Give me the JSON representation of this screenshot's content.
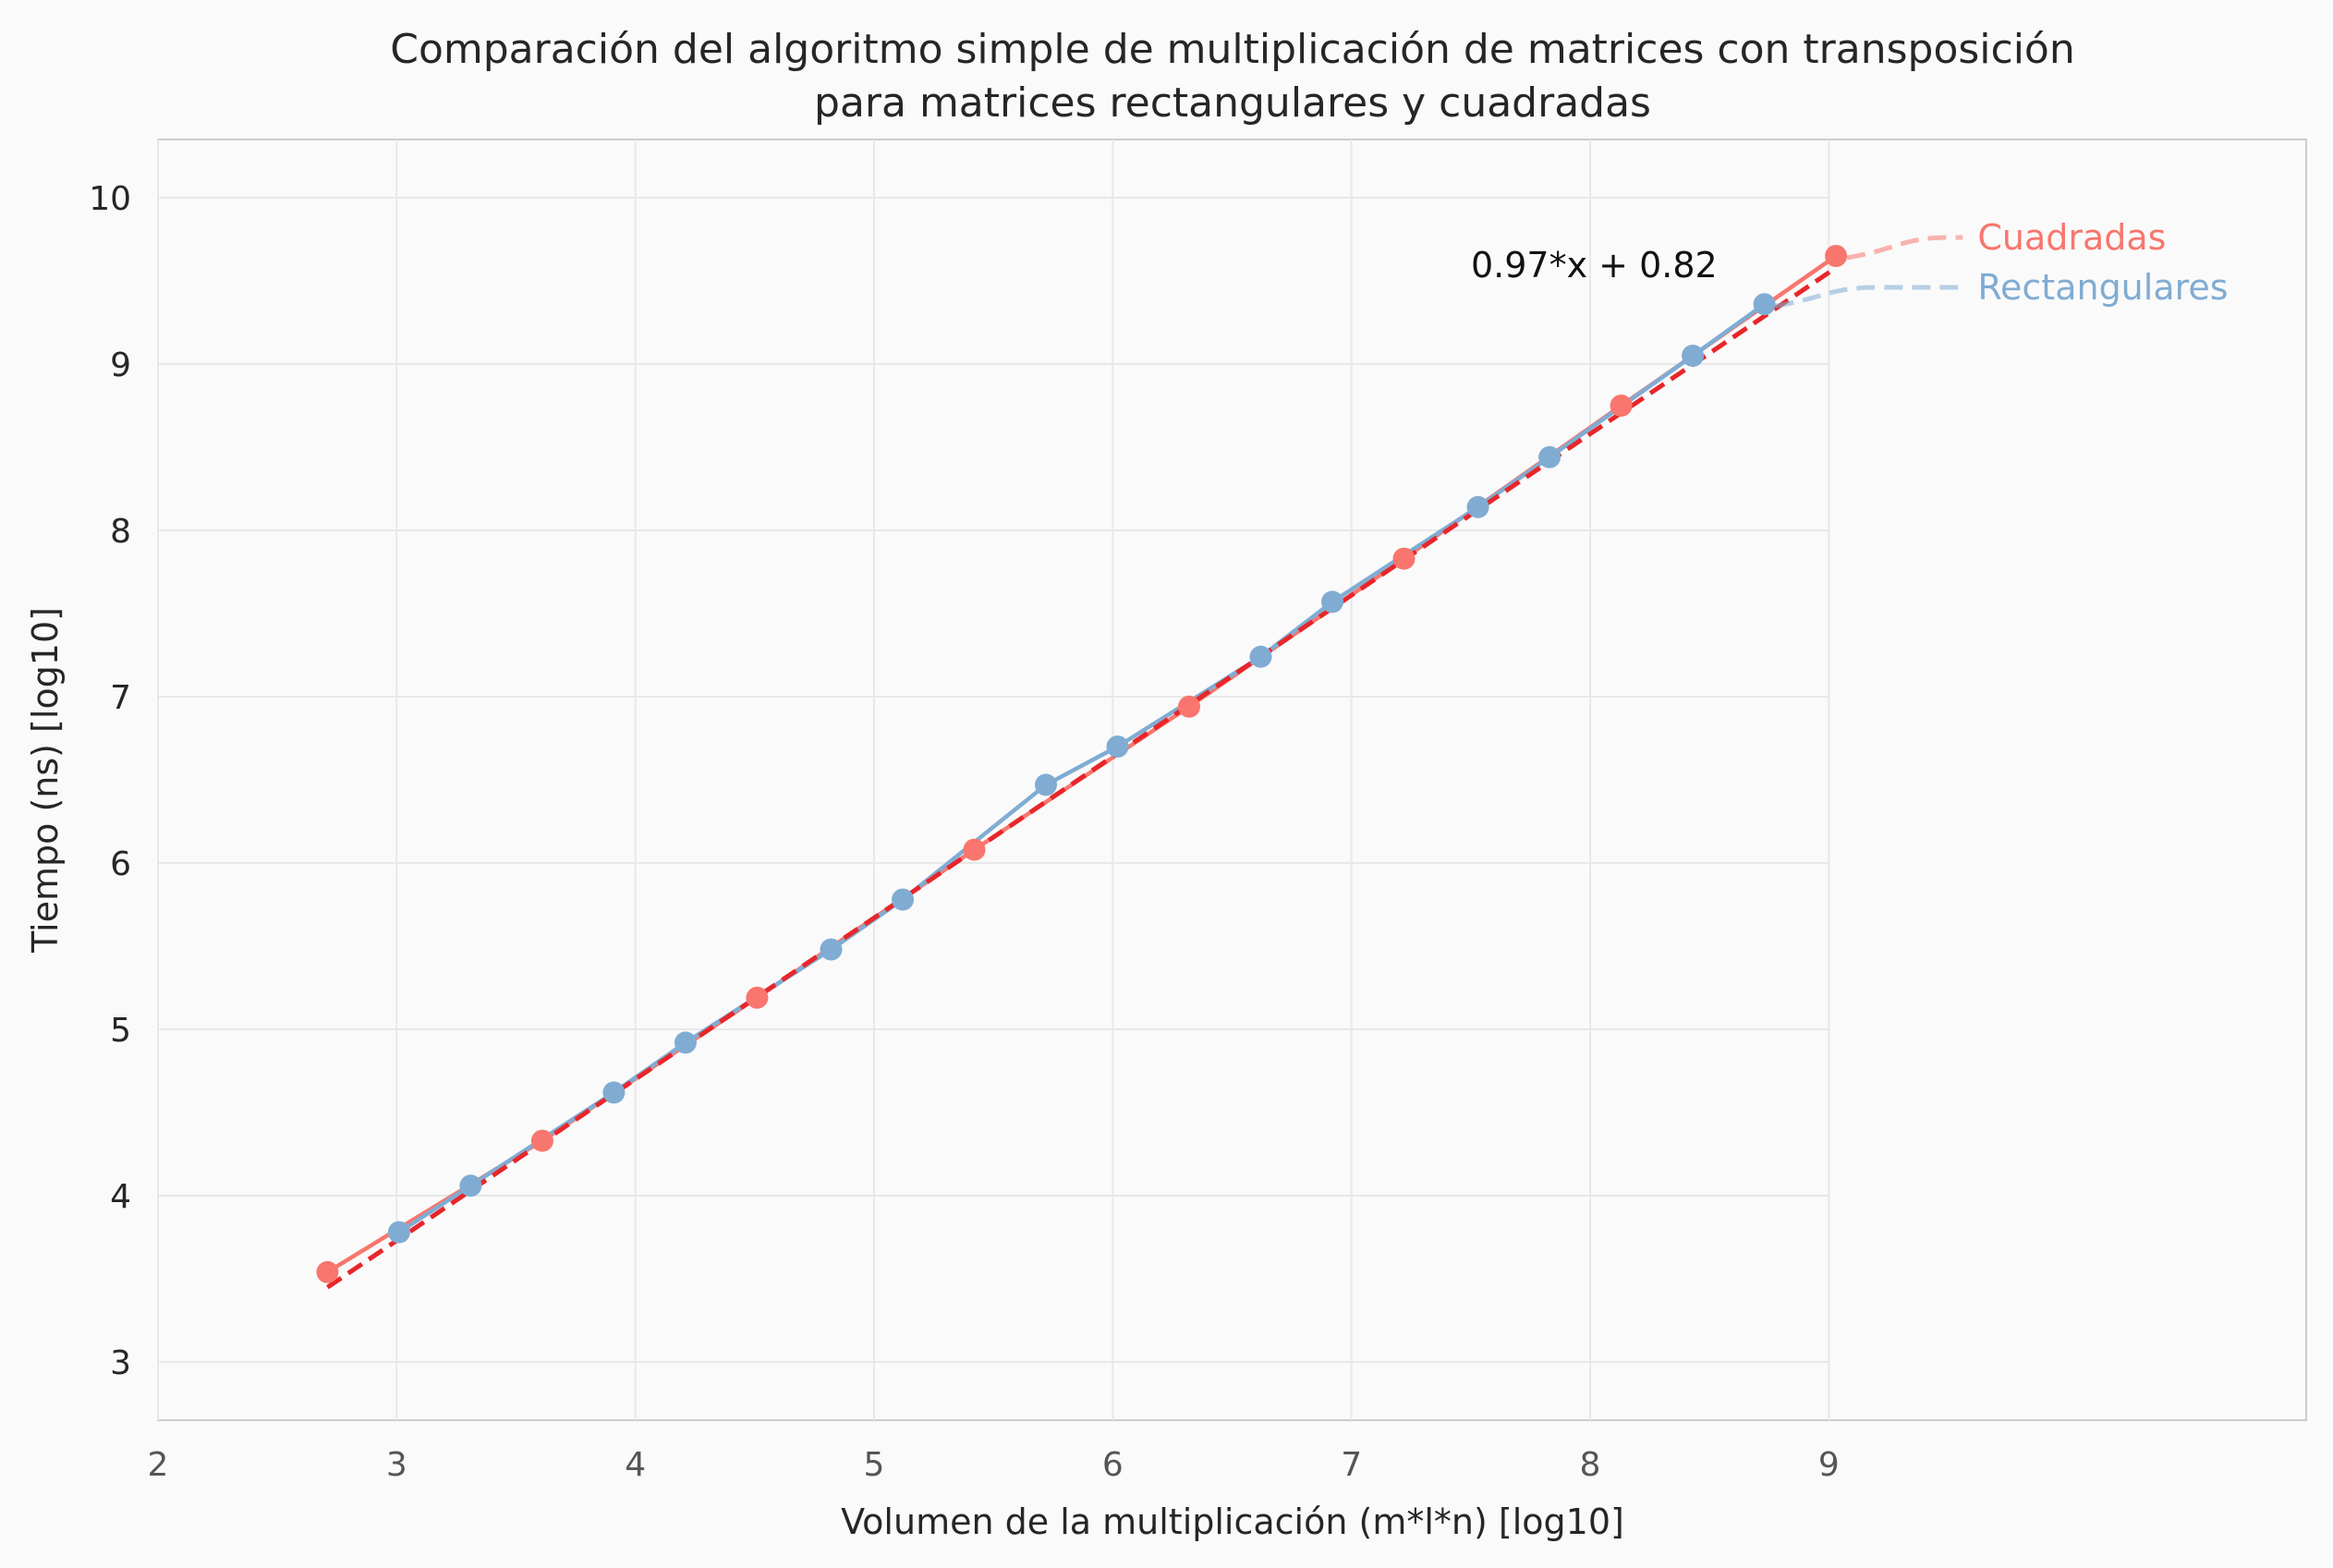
{
  "chart_data": {
    "type": "line",
    "title": [
      "Comparación del algoritmo simple de multiplicación de matrices con transposición",
      "para matrices rectangulares y cuadradas"
    ],
    "xlabel": "Volumen de la multiplicación (m*l*n) [log10]",
    "ylabel": "Tiempo (ns) [log10]",
    "xlim": [
      2.0,
      11.0
    ],
    "ylim": [
      2.65,
      10.35
    ],
    "xticks": [
      "2",
      "3",
      "4",
      "5",
      "6",
      "7",
      "8",
      "9"
    ],
    "xtick_values": [
      2,
      3,
      4,
      5,
      6,
      7,
      8,
      9
    ],
    "yticks": [
      "3",
      "4",
      "5",
      "6",
      "7",
      "8",
      "9",
      "10"
    ],
    "ytick_values": [
      3,
      4,
      5,
      6,
      7,
      8,
      9,
      10
    ],
    "grid": true,
    "grid_extent_x": [
      2,
      9
    ],
    "series": [
      {
        "name": "Cuadradas",
        "color": "#f8766d",
        "x": [
          2.71,
          3.61,
          4.51,
          5.42,
          6.32,
          7.22,
          8.13,
          9.03
        ],
        "y": [
          3.54,
          4.33,
          5.19,
          6.08,
          6.94,
          7.83,
          8.75,
          9.65
        ]
      },
      {
        "name": "Rectangulares",
        "color": "#80acd3",
        "x": [
          3.01,
          3.31,
          3.91,
          4.21,
          4.82,
          5.12,
          5.72,
          6.02,
          6.62,
          6.92,
          7.53,
          7.83,
          8.43,
          8.73
        ],
        "y": [
          3.78,
          4.06,
          4.62,
          4.92,
          5.48,
          5.78,
          6.47,
          6.7,
          7.24,
          7.57,
          8.14,
          8.44,
          9.05,
          9.36
        ]
      }
    ],
    "fit": {
      "label": "0.97*x + 0.82",
      "slope": 0.97,
      "intercept": 0.82,
      "x_range": [
        2.71,
        9.03
      ],
      "color": "#e8262a",
      "style": "dashed"
    },
    "legend_placement": "right, at line ends"
  }
}
